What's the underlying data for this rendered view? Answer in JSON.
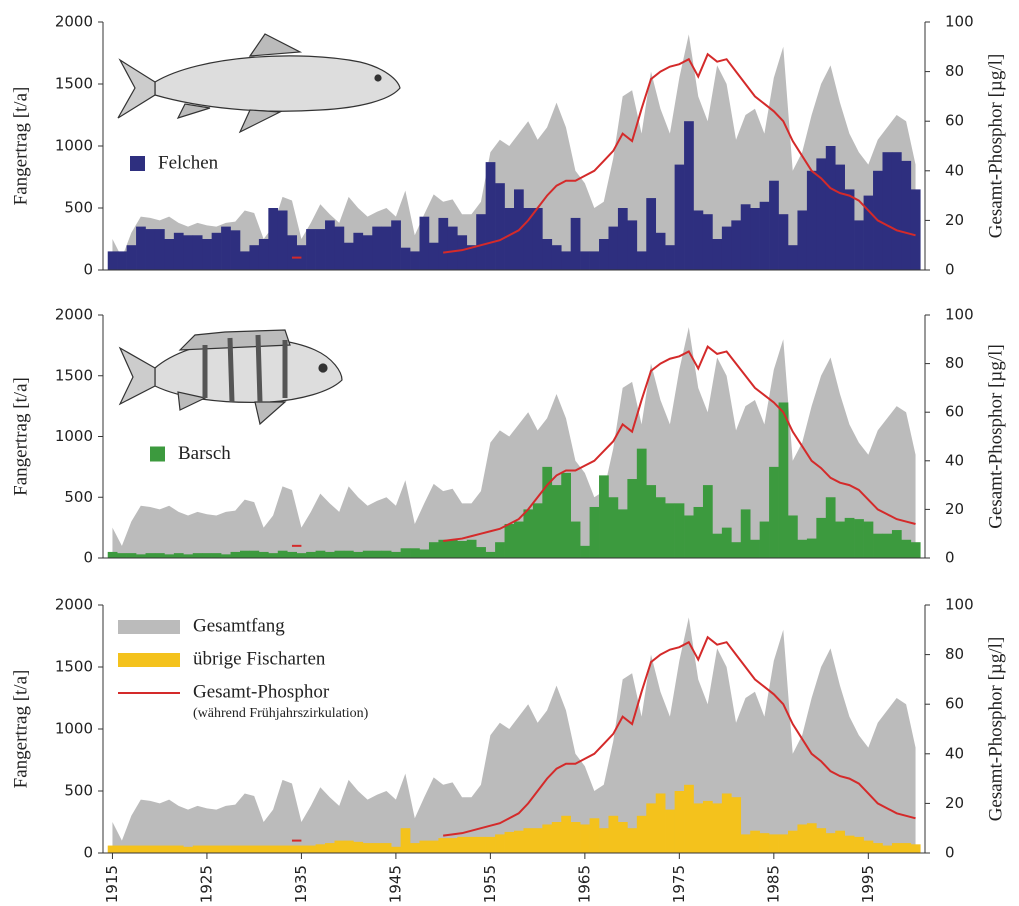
{
  "chart_data": [
    {
      "type": "bar",
      "ylabel": "Fangertrag [t/a]",
      "y2label": "Gesamt-Phosphor [µg/l]",
      "xlim": [
        1914,
        2001
      ],
      "ylim": [
        0,
        2000
      ],
      "yticks": [
        0,
        500,
        1000,
        1500,
        2000
      ],
      "y2lim": [
        0,
        100
      ],
      "y2ticks": [
        0,
        20,
        40,
        60,
        80,
        100
      ],
      "legend": "center left",
      "x": [
        1915,
        1916,
        1917,
        1918,
        1919,
        1920,
        1921,
        1922,
        1923,
        1924,
        1925,
        1926,
        1927,
        1928,
        1929,
        1930,
        1931,
        1932,
        1933,
        1934,
        1935,
        1936,
        1937,
        1938,
        1939,
        1940,
        1941,
        1942,
        1943,
        1944,
        1945,
        1946,
        1947,
        1948,
        1949,
        1950,
        1951,
        1952,
        1953,
        1954,
        1955,
        1956,
        1957,
        1958,
        1959,
        1960,
        1961,
        1962,
        1963,
        1964,
        1965,
        1966,
        1967,
        1968,
        1969,
        1970,
        1971,
        1972,
        1973,
        1974,
        1975,
        1976,
        1977,
        1978,
        1979,
        1980,
        1981,
        1982,
        1983,
        1984,
        1985,
        1986,
        1987,
        1988,
        1989,
        1990,
        1991,
        1992,
        1993,
        1994,
        1995,
        1996,
        1997,
        1998,
        1999,
        2000
      ],
      "series": [
        {
          "type": "area",
          "color": "#bbbbbb",
          "values": [
            250,
            100,
            300,
            430,
            420,
            400,
            430,
            380,
            350,
            380,
            360,
            350,
            380,
            390,
            480,
            460,
            250,
            350,
            590,
            560,
            250,
            380,
            530,
            450,
            380,
            590,
            500,
            430,
            470,
            500,
            430,
            640,
            280,
            450,
            610,
            550,
            570,
            450,
            450,
            550,
            950,
            1050,
            1000,
            1100,
            1200,
            1050,
            1150,
            1350,
            1150,
            800,
            700,
            500,
            550,
            900,
            1400,
            1450,
            1100,
            1600,
            1300,
            1100,
            1550,
            1900,
            1400,
            1200,
            1650,
            1500,
            1050,
            1250,
            1300,
            1100,
            1550,
            1800,
            800,
            950,
            1250,
            1500,
            1650,
            1350,
            1100,
            950,
            850,
            1050,
            1150,
            1250,
            1200,
            850
          ]
        },
        {
          "type": "bar",
          "name": "Felchen",
          "color": "#2e2f7f",
          "values": [
            150,
            150,
            200,
            350,
            330,
            330,
            250,
            300,
            280,
            280,
            250,
            300,
            350,
            320,
            150,
            200,
            250,
            500,
            480,
            280,
            200,
            330,
            330,
            400,
            350,
            220,
            300,
            280,
            350,
            350,
            400,
            180,
            150,
            430,
            220,
            420,
            350,
            280,
            200,
            450,
            870,
            700,
            500,
            650,
            500,
            500,
            250,
            200,
            150,
            420,
            150,
            150,
            250,
            350,
            500,
            400,
            150,
            580,
            300,
            200,
            850,
            1200,
            480,
            450,
            250,
            350,
            400,
            530,
            500,
            550,
            720,
            450,
            200,
            480,
            800,
            900,
            1000,
            850,
            650,
            400,
            600,
            800,
            950,
            950,
            880,
            650
          ]
        },
        {
          "type": "line",
          "axis": "y2",
          "color": "#d42a2a",
          "values": [
            null,
            null,
            null,
            null,
            null,
            null,
            null,
            null,
            null,
            null,
            null,
            null,
            null,
            null,
            null,
            null,
            null,
            null,
            null,
            5,
            5,
            null,
            null,
            null,
            null,
            null,
            null,
            null,
            null,
            null,
            null,
            null,
            null,
            null,
            null,
            7,
            7.5,
            8,
            9,
            10,
            11,
            12,
            14,
            16,
            20,
            25,
            30,
            34,
            36,
            36,
            38,
            40,
            44,
            48,
            55,
            52,
            65,
            77,
            80,
            82,
            83,
            85,
            78,
            87,
            84,
            85,
            80,
            75,
            70,
            67,
            64,
            60,
            52,
            46,
            40,
            37,
            33,
            31,
            30,
            28,
            24,
            20,
            18,
            16,
            15,
            14
          ]
        }
      ]
    },
    {
      "type": "bar",
      "ylabel": "Fangertrag [t/a]",
      "y2label": "Gesamt-Phosphor [µg/l]",
      "xlim": [
        1914,
        2001
      ],
      "ylim": [
        0,
        2000
      ],
      "yticks": [
        0,
        500,
        1000,
        1500,
        2000
      ],
      "y2lim": [
        0,
        100
      ],
      "y2ticks": [
        0,
        20,
        40,
        60,
        80,
        100
      ],
      "legend": "center left",
      "x": [
        1915,
        1916,
        1917,
        1918,
        1919,
        1920,
        1921,
        1922,
        1923,
        1924,
        1925,
        1926,
        1927,
        1928,
        1929,
        1930,
        1931,
        1932,
        1933,
        1934,
        1935,
        1936,
        1937,
        1938,
        1939,
        1940,
        1941,
        1942,
        1943,
        1944,
        1945,
        1946,
        1947,
        1948,
        1949,
        1950,
        1951,
        1952,
        1953,
        1954,
        1955,
        1956,
        1957,
        1958,
        1959,
        1960,
        1961,
        1962,
        1963,
        1964,
        1965,
        1966,
        1967,
        1968,
        1969,
        1970,
        1971,
        1972,
        1973,
        1974,
        1975,
        1976,
        1977,
        1978,
        1979,
        1980,
        1981,
        1982,
        1983,
        1984,
        1985,
        1986,
        1987,
        1988,
        1989,
        1990,
        1991,
        1992,
        1993,
        1994,
        1995,
        1996,
        1997,
        1998,
        1999,
        2000
      ],
      "series": [
        {
          "type": "area",
          "color": "#bbbbbb",
          "values": [
            250,
            100,
            300,
            430,
            420,
            400,
            430,
            380,
            350,
            380,
            360,
            350,
            380,
            390,
            480,
            460,
            250,
            350,
            590,
            560,
            250,
            380,
            530,
            450,
            380,
            590,
            500,
            430,
            470,
            500,
            430,
            640,
            280,
            450,
            610,
            550,
            570,
            450,
            450,
            550,
            950,
            1050,
            1000,
            1100,
            1200,
            1050,
            1150,
            1350,
            1150,
            800,
            700,
            500,
            550,
            900,
            1400,
            1450,
            1100,
            1600,
            1300,
            1100,
            1550,
            1900,
            1400,
            1200,
            1650,
            1500,
            1050,
            1250,
            1300,
            1100,
            1550,
            1800,
            800,
            950,
            1250,
            1500,
            1650,
            1350,
            1100,
            950,
            850,
            1050,
            1150,
            1250,
            1200,
            850
          ]
        },
        {
          "type": "bar",
          "name": "Barsch",
          "color": "#3c9a3e",
          "values": [
            50,
            40,
            40,
            30,
            40,
            40,
            30,
            40,
            30,
            40,
            40,
            40,
            30,
            50,
            60,
            60,
            50,
            40,
            60,
            50,
            40,
            50,
            60,
            50,
            60,
            60,
            50,
            60,
            60,
            60,
            50,
            80,
            80,
            70,
            130,
            150,
            150,
            140,
            150,
            90,
            50,
            130,
            280,
            300,
            400,
            450,
            750,
            600,
            700,
            300,
            100,
            420,
            680,
            500,
            400,
            650,
            900,
            600,
            500,
            450,
            450,
            350,
            420,
            600,
            200,
            250,
            130,
            400,
            150,
            300,
            750,
            1280,
            350,
            150,
            160,
            330,
            500,
            300,
            330,
            320,
            300,
            200,
            200,
            230,
            150,
            130
          ]
        },
        {
          "type": "line",
          "axis": "y2",
          "color": "#d42a2a",
          "values": [
            null,
            null,
            null,
            null,
            null,
            null,
            null,
            null,
            null,
            null,
            null,
            null,
            null,
            null,
            null,
            null,
            null,
            null,
            null,
            5,
            5,
            null,
            null,
            null,
            null,
            null,
            null,
            null,
            null,
            null,
            null,
            null,
            null,
            null,
            null,
            7,
            7.5,
            8,
            9,
            10,
            11,
            12,
            14,
            16,
            20,
            25,
            30,
            34,
            36,
            36,
            38,
            40,
            44,
            48,
            55,
            52,
            65,
            77,
            80,
            82,
            83,
            85,
            78,
            87,
            84,
            85,
            80,
            75,
            70,
            67,
            64,
            60,
            52,
            46,
            40,
            37,
            33,
            31,
            30,
            28,
            24,
            20,
            18,
            16,
            15,
            14
          ]
        }
      ]
    },
    {
      "type": "bar",
      "ylabel": "Fangertrag [t/a]",
      "y2label": "Gesamt-Phosphor [µg/l]",
      "xlim": [
        1914,
        2001
      ],
      "xticks": [
        1915,
        1925,
        1935,
        1945,
        1955,
        1965,
        1975,
        1985,
        1995
      ],
      "ylim": [
        0,
        2000
      ],
      "yticks": [
        0,
        500,
        1000,
        1500,
        2000
      ],
      "y2lim": [
        0,
        100
      ],
      "y2ticks": [
        0,
        20,
        40,
        60,
        80,
        100
      ],
      "legend": "upper left",
      "legend_note": "(während Frühjahrszirkulation)",
      "x": [
        1915,
        1916,
        1917,
        1918,
        1919,
        1920,
        1921,
        1922,
        1923,
        1924,
        1925,
        1926,
        1927,
        1928,
        1929,
        1930,
        1931,
        1932,
        1933,
        1934,
        1935,
        1936,
        1937,
        1938,
        1939,
        1940,
        1941,
        1942,
        1943,
        1944,
        1945,
        1946,
        1947,
        1948,
        1949,
        1950,
        1951,
        1952,
        1953,
        1954,
        1955,
        1956,
        1957,
        1958,
        1959,
        1960,
        1961,
        1962,
        1963,
        1964,
        1965,
        1966,
        1967,
        1968,
        1969,
        1970,
        1971,
        1972,
        1973,
        1974,
        1975,
        1976,
        1977,
        1978,
        1979,
        1980,
        1981,
        1982,
        1983,
        1984,
        1985,
        1986,
        1987,
        1988,
        1989,
        1990,
        1991,
        1992,
        1993,
        1994,
        1995,
        1996,
        1997,
        1998,
        1999,
        2000
      ],
      "series": [
        {
          "type": "area",
          "name": "Gesamtfang",
          "color": "#bbbbbb",
          "values": [
            250,
            100,
            300,
            430,
            420,
            400,
            430,
            380,
            350,
            380,
            360,
            350,
            380,
            390,
            480,
            460,
            250,
            350,
            590,
            560,
            250,
            380,
            530,
            450,
            380,
            590,
            500,
            430,
            470,
            500,
            430,
            640,
            280,
            450,
            610,
            550,
            570,
            450,
            450,
            550,
            950,
            1050,
            1000,
            1100,
            1200,
            1050,
            1150,
            1350,
            1150,
            800,
            700,
            500,
            550,
            900,
            1400,
            1450,
            1100,
            1600,
            1300,
            1100,
            1550,
            1900,
            1400,
            1200,
            1650,
            1500,
            1050,
            1250,
            1300,
            1100,
            1550,
            1800,
            800,
            950,
            1250,
            1500,
            1650,
            1350,
            1100,
            950,
            850,
            1050,
            1150,
            1250,
            1200,
            850
          ]
        },
        {
          "type": "bar",
          "name": "übrige Fischarten",
          "color": "#f4c21c",
          "values": [
            60,
            60,
            60,
            60,
            60,
            60,
            60,
            60,
            50,
            60,
            60,
            60,
            60,
            60,
            60,
            60,
            60,
            60,
            60,
            60,
            60,
            60,
            70,
            80,
            100,
            100,
            90,
            80,
            80,
            80,
            50,
            200,
            80,
            100,
            100,
            120,
            120,
            130,
            130,
            130,
            130,
            150,
            170,
            180,
            200,
            200,
            230,
            250,
            300,
            250,
            230,
            280,
            200,
            300,
            250,
            200,
            300,
            400,
            480,
            350,
            500,
            550,
            400,
            420,
            400,
            480,
            450,
            150,
            180,
            160,
            150,
            150,
            180,
            230,
            240,
            200,
            160,
            180,
            140,
            130,
            100,
            80,
            60,
            80,
            80,
            70
          ]
        },
        {
          "type": "line",
          "axis": "y2",
          "name": "Gesamt-Phosphor",
          "color": "#d42a2a",
          "values": [
            null,
            null,
            null,
            null,
            null,
            null,
            null,
            null,
            null,
            null,
            null,
            null,
            null,
            null,
            null,
            null,
            null,
            null,
            null,
            5,
            5,
            null,
            null,
            null,
            null,
            null,
            null,
            null,
            null,
            null,
            null,
            null,
            null,
            null,
            null,
            7,
            7.5,
            8,
            9,
            10,
            11,
            12,
            14,
            16,
            20,
            25,
            30,
            34,
            36,
            36,
            38,
            40,
            44,
            48,
            55,
            52,
            65,
            77,
            80,
            82,
            83,
            85,
            78,
            87,
            84,
            85,
            80,
            75,
            70,
            67,
            64,
            60,
            52,
            46,
            40,
            37,
            33,
            31,
            30,
            28,
            24,
            20,
            18,
            16,
            15,
            14
          ]
        }
      ]
    }
  ]
}
